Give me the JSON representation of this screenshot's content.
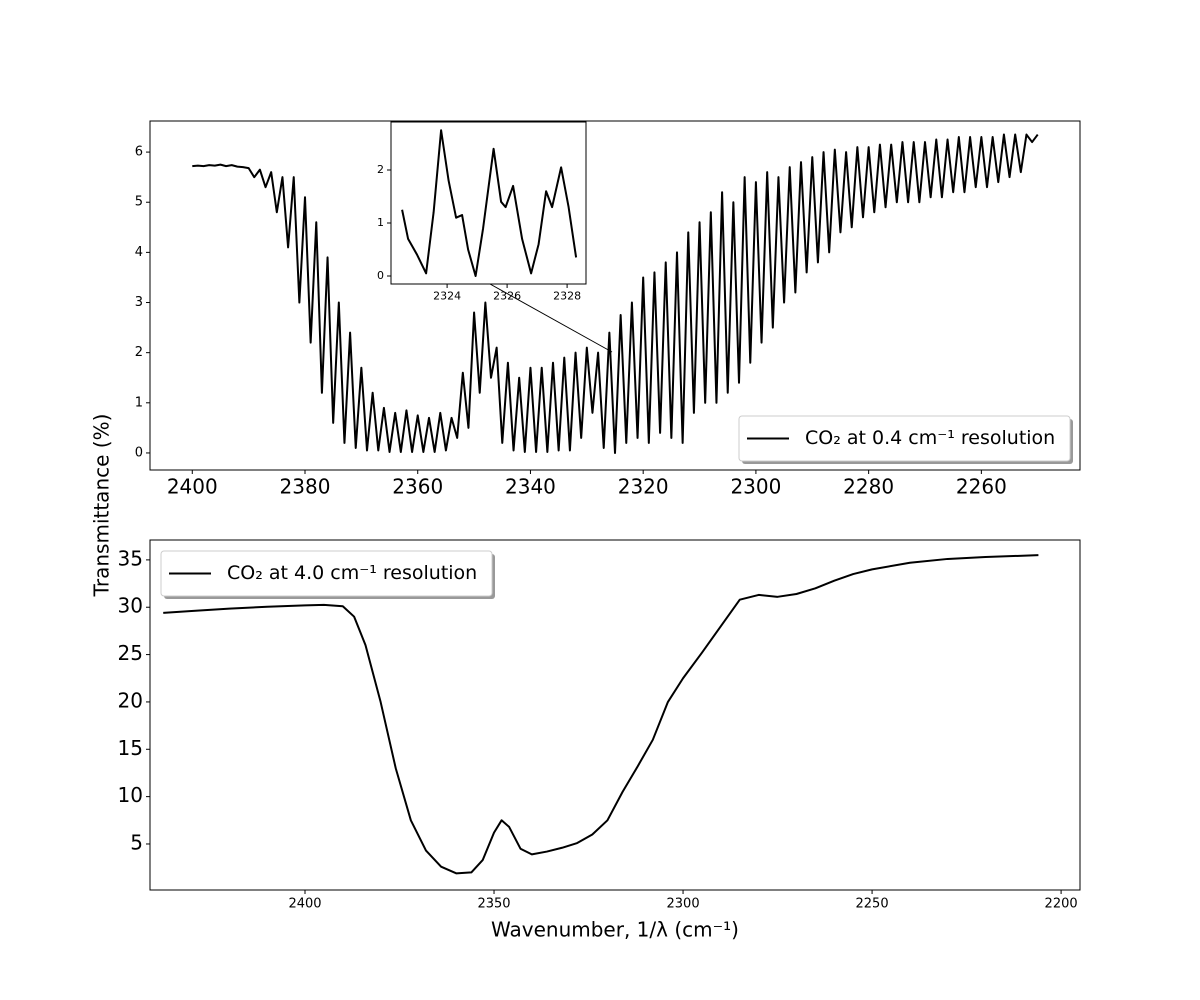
{
  "chart_data": [
    {
      "type": "line",
      "ylabel": "Transmittance (%)",
      "legend": "lower right",
      "grid": false,
      "xlim": [
        2407.5,
        2242.5
      ],
      "ylim": [
        -0.34,
        6.62
      ],
      "xticks": [
        2400,
        2380,
        2360,
        2340,
        2320,
        2300,
        2280,
        2260
      ],
      "yticks": [
        0,
        1,
        2,
        3,
        4,
        5,
        6
      ],
      "x": [
        2400,
        2399,
        2398,
        2397,
        2396,
        2395,
        2394,
        2393,
        2392,
        2391,
        2390,
        2389,
        2388,
        2387,
        2386,
        2385,
        2384,
        2383,
        2382,
        2381,
        2380,
        2379,
        2378,
        2377,
        2376,
        2375,
        2374,
        2373,
        2372,
        2371,
        2370,
        2369,
        2368,
        2367,
        2366,
        2365,
        2364,
        2363,
        2362,
        2361,
        2360,
        2359,
        2358,
        2357,
        2356,
        2355,
        2354,
        2353,
        2352,
        2351,
        2350,
        2349,
        2348,
        2347,
        2346,
        2345,
        2344,
        2343,
        2342,
        2341,
        2340,
        2339,
        2338,
        2337,
        2336,
        2335,
        2334,
        2333,
        2332,
        2331,
        2330,
        2329,
        2328,
        2327,
        2326,
        2325,
        2324,
        2323,
        2322,
        2321,
        2320,
        2319,
        2318,
        2317,
        2316,
        2315,
        2314,
        2313,
        2312,
        2311,
        2310,
        2309,
        2308,
        2307,
        2306,
        2305,
        2304,
        2303,
        2302,
        2301,
        2300,
        2299,
        2298,
        2297,
        2296,
        2295,
        2294,
        2293,
        2292,
        2291,
        2290,
        2289,
        2288,
        2287,
        2286,
        2285,
        2284,
        2283,
        2282,
        2281,
        2280,
        2279,
        2278,
        2277,
        2276,
        2275,
        2274,
        2273,
        2272,
        2271,
        2270,
        2269,
        2268,
        2267,
        2266,
        2265,
        2264,
        2263,
        2262,
        2261,
        2260,
        2259,
        2258,
        2257,
        2256,
        2255,
        2254,
        2253,
        2252,
        2251,
        2250
      ],
      "series": [
        {
          "name": "CO₂ at 0.4 cm⁻¹ resolution",
          "color": "#000000",
          "values": [
            5.72,
            5.73,
            5.72,
            5.74,
            5.73,
            5.75,
            5.72,
            5.74,
            5.71,
            5.7,
            5.68,
            5.5,
            5.65,
            5.3,
            5.6,
            4.8,
            5.5,
            4.1,
            5.5,
            3.0,
            5.1,
            2.2,
            4.6,
            1.2,
            3.9,
            0.6,
            3.0,
            0.2,
            2.4,
            0.1,
            1.7,
            0.05,
            1.2,
            0.05,
            0.9,
            0.02,
            0.8,
            0.02,
            0.85,
            0.02,
            0.75,
            0.02,
            0.7,
            0.02,
            0.8,
            0.05,
            0.7,
            0.3,
            1.6,
            0.5,
            2.8,
            1.2,
            3.0,
            1.5,
            2.1,
            0.2,
            1.8,
            0.05,
            1.5,
            0.02,
            1.7,
            0.02,
            1.7,
            0.02,
            1.8,
            0.05,
            1.9,
            0.05,
            2.0,
            0.3,
            2.1,
            0.8,
            2.0,
            0.1,
            2.4,
            0.0,
            2.75,
            0.2,
            3.0,
            0.3,
            3.5,
            0.2,
            3.6,
            0.4,
            3.8,
            0.3,
            4.0,
            0.2,
            4.4,
            0.8,
            4.6,
            1.0,
            4.8,
            1.0,
            5.2,
            1.2,
            5.0,
            1.4,
            5.5,
            1.8,
            5.4,
            2.2,
            5.6,
            2.5,
            5.5,
            3.0,
            5.7,
            3.2,
            5.8,
            3.6,
            5.9,
            3.8,
            6.0,
            4.0,
            6.05,
            4.4,
            6.0,
            4.5,
            6.1,
            4.7,
            6.1,
            4.8,
            6.15,
            4.9,
            6.15,
            5.0,
            6.2,
            5.0,
            6.2,
            5.0,
            6.2,
            5.1,
            6.25,
            5.1,
            6.25,
            5.2,
            6.3,
            5.2,
            6.3,
            5.3,
            6.3,
            5.3,
            6.3,
            5.4,
            6.35,
            5.5,
            6.35,
            5.6,
            6.35,
            6.2,
            6.35
          ]
        }
      ]
    },
    {
      "type": "line",
      "xlabel": "Wavenumber, 1/λ (cm⁻¹)",
      "legend": "upper left",
      "grid": false,
      "xlim": [
        2441,
        2195
      ],
      "ylim": [
        0.14,
        37.1
      ],
      "xticks": [
        2400,
        2350,
        2300,
        2250,
        2200
      ],
      "yticks": [
        5,
        10,
        15,
        20,
        25,
        30,
        35
      ],
      "x": [
        2437.5,
        2430,
        2420,
        2410,
        2400,
        2395,
        2390,
        2387,
        2384,
        2380,
        2376,
        2372,
        2368,
        2364,
        2360,
        2356,
        2353,
        2350,
        2348,
        2346,
        2343,
        2340,
        2336,
        2332,
        2328,
        2324,
        2320,
        2316,
        2312,
        2308,
        2304,
        2300,
        2295,
        2290,
        2285,
        2280,
        2275,
        2270,
        2265,
        2260,
        2255,
        2250,
        2240,
        2230,
        2220,
        2206
      ],
      "series": [
        {
          "name": "CO₂ at 4.0 cm⁻¹ resolution",
          "color": "#000000",
          "values": [
            29.4,
            29.6,
            29.85,
            30.05,
            30.2,
            30.25,
            30.1,
            29.0,
            26,
            20,
            13,
            7.5,
            4.3,
            2.6,
            1.9,
            2.0,
            3.3,
            6.2,
            7.5,
            6.8,
            4.5,
            3.9,
            4.2,
            4.6,
            5.1,
            6.0,
            7.5,
            10.5,
            13.2,
            16.0,
            20.0,
            22.5,
            25.2,
            28.0,
            30.8,
            31.3,
            31.1,
            31.4,
            32.0,
            32.8,
            33.5,
            34.0,
            34.7,
            35.1,
            35.3,
            35.5
          ]
        }
      ]
    },
    {
      "type": "line",
      "grid": false,
      "xlim": [
        2322.13,
        2328.63
      ],
      "ylim": [
        -0.151,
        2.906
      ],
      "xticks": [
        2324,
        2326,
        2328
      ],
      "yticks": [
        0,
        1,
        2
      ],
      "x": [
        2322.5,
        2322.7,
        2323.0,
        2323.3,
        2323.55,
        2323.8,
        2324.05,
        2324.3,
        2324.5,
        2324.7,
        2324.95,
        2325.2,
        2325.55,
        2325.8,
        2325.95,
        2326.2,
        2326.5,
        2326.8,
        2327.05,
        2327.3,
        2327.5,
        2327.8,
        2328.05,
        2328.3
      ],
      "series": [
        {
          "color": "#000000",
          "values": [
            1.25,
            0.7,
            0.4,
            0.05,
            1.2,
            2.75,
            1.8,
            1.1,
            1.15,
            0.5,
            0.0,
            0.9,
            2.4,
            1.4,
            1.3,
            1.7,
            0.7,
            0.05,
            0.6,
            1.6,
            1.3,
            2.05,
            1.3,
            0.35
          ]
        }
      ]
    }
  ]
}
